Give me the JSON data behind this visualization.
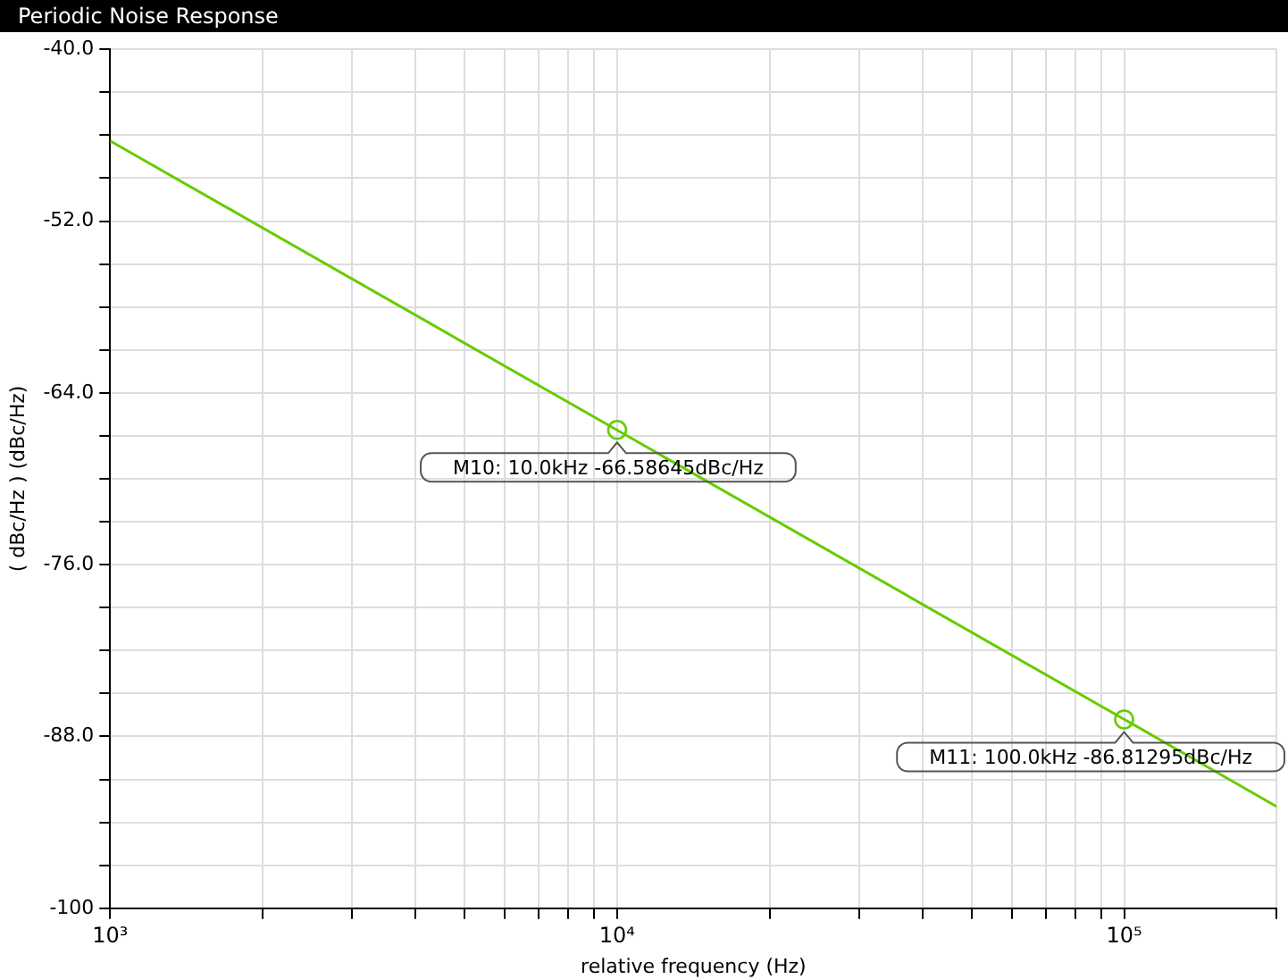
{
  "chart_data": {
    "type": "line",
    "title": "Periodic Noise Response",
    "xlabel": "relative frequency (Hz)",
    "ylabel": "( dBc/Hz ) (dBc/Hz)",
    "series": [
      {
        "color": "#66cc00",
        "marker": "none",
        "x": [
          1000,
          10000,
          100000,
          200000
        ],
        "values": [
          -46.4,
          -66.6,
          -86.8,
          -92.9
        ]
      },
      {
        "type": "scatter",
        "color": "#66cc00",
        "marker": "circle",
        "x": [
          10000,
          100000
        ],
        "values": [
          -66.58645,
          -86.81295
        ]
      }
    ],
    "annotations": [
      {
        "text": "M10: 10.0kHz -66.58645dBc/Hz",
        "x": 10000,
        "y": -66.58645
      },
      {
        "text": "M11: 100.0kHz -86.81295dBc/Hz",
        "x": 100000,
        "y": -86.81295
      }
    ],
    "log": "x",
    "xlim": [
      1000,
      200000
    ],
    "xticks": [
      {
        "value": 1000,
        "label": "10³"
      },
      {
        "value": 2000,
        "label": null
      },
      {
        "value": 3000,
        "label": null
      },
      {
        "value": 4000,
        "label": null
      },
      {
        "value": 5000,
        "label": null
      },
      {
        "value": 6000,
        "label": null
      },
      {
        "value": 7000,
        "label": null
      },
      {
        "value": 8000,
        "label": null
      },
      {
        "value": 9000,
        "label": null
      },
      {
        "value": 10000,
        "label": "10⁴"
      },
      {
        "value": 20000,
        "label": null
      },
      {
        "value": 30000,
        "label": null
      },
      {
        "value": 40000,
        "label": null
      },
      {
        "value": 50000,
        "label": null
      },
      {
        "value": 60000,
        "label": null
      },
      {
        "value": 70000,
        "label": null
      },
      {
        "value": 80000,
        "label": null
      },
      {
        "value": 90000,
        "label": null
      },
      {
        "value": 100000,
        "label": "10⁵"
      },
      {
        "value": 200000,
        "label": null
      }
    ],
    "ylim": [
      -100,
      -40
    ],
    "yticks": [
      {
        "value": -100,
        "label": "-100"
      },
      {
        "value": -97,
        "label": null
      },
      {
        "value": -94,
        "label": null
      },
      {
        "value": -91,
        "label": null
      },
      {
        "value": -88,
        "label": "-88.0"
      },
      {
        "value": -85,
        "label": null
      },
      {
        "value": -82,
        "label": null
      },
      {
        "value": -79,
        "label": null
      },
      {
        "value": -76,
        "label": "-76.0"
      },
      {
        "value": -73,
        "label": null
      },
      {
        "value": -70,
        "label": null
      },
      {
        "value": -67,
        "label": null
      },
      {
        "value": -64,
        "label": "-64.0"
      },
      {
        "value": -61,
        "label": null
      },
      {
        "value": -58,
        "label": null
      },
      {
        "value": -55,
        "label": null
      },
      {
        "value": -52,
        "label": "-52.0"
      },
      {
        "value": -49,
        "label": null
      },
      {
        "value": -46,
        "label": null
      },
      {
        "value": -43,
        "label": null
      },
      {
        "value": -40,
        "label": "-40.0"
      }
    ],
    "grid": true,
    "legend": false
  }
}
